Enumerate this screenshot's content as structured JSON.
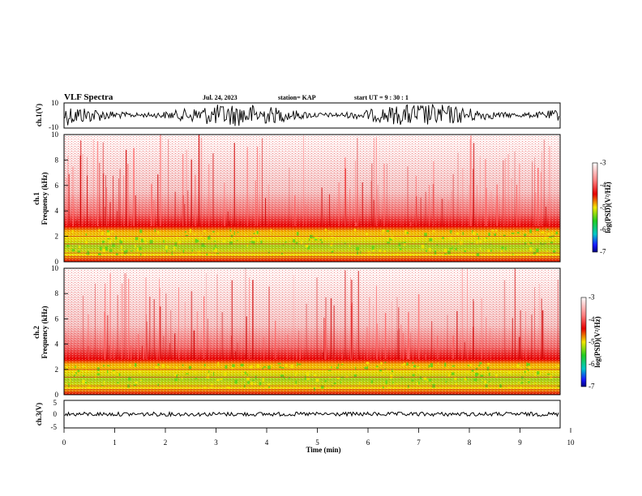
{
  "header": {
    "title": "VLF Spectra",
    "date": "Jul. 24, 2023",
    "station": "station= KAP",
    "start": "start  UT  =   9  : 30 : 1"
  },
  "colors": {
    "spectrogram_low": "#1a1aff",
    "spectrogram_mid_low": "#22cc22",
    "spectrogram_mid": "#f2e600",
    "spectrogram_high": "#e60000",
    "background": "#ffffff"
  },
  "chart_data": [
    {
      "type": "line",
      "panel": "ch1-waveform",
      "ylabel": "ch.1(V)",
      "ylim": [
        -10,
        10
      ],
      "y_ticks": [
        "10",
        "-10"
      ],
      "xlim": [
        0,
        10
      ],
      "description_note": ""
    },
    {
      "type": "heatmap",
      "panel": "ch1-spectrogram",
      "ylabel": "ch.1\nFrequency (kHz)",
      "ylabel_line1": "ch.1",
      "ylabel_line2": "Frequency (kHz)",
      "ylim": [
        0,
        10
      ],
      "y_ticks": [
        "0",
        "2",
        "4",
        "6",
        "8",
        "10"
      ],
      "xlim": [
        0,
        10
      ],
      "colorbar": {
        "label": "log(PSD)(V²/Hz)",
        "range": [
          -7,
          -3
        ],
        "ticks": [
          "-3",
          "-4",
          "-5",
          "-6",
          "-7"
        ]
      }
    },
    {
      "type": "heatmap",
      "panel": "ch2-spectrogram",
      "ylabel_line1": "ch.2",
      "ylabel_line2": "Frequency (kHz)",
      "ylim": [
        0,
        10
      ],
      "y_ticks": [
        "0",
        "2",
        "4",
        "6",
        "8",
        "10"
      ],
      "xlim": [
        0,
        10
      ],
      "colorbar": {
        "label": "log(PSD)(V²/Hz)",
        "range": [
          -7,
          -3
        ],
        "ticks": [
          "-3",
          "-4",
          "-5",
          "-6",
          "-7"
        ]
      }
    },
    {
      "type": "line",
      "panel": "ch3-waveform",
      "ylabel": "ch.3(V)",
      "ylim": [
        -5,
        5
      ],
      "y_ticks": [
        "5",
        "0",
        "-5"
      ],
      "xlim": [
        0,
        10
      ],
      "xlabel": "Time (min)",
      "x_ticks": [
        "0",
        "1",
        "2",
        "3",
        "4",
        "5",
        "6",
        "7",
        "8",
        "9",
        "10"
      ]
    }
  ]
}
